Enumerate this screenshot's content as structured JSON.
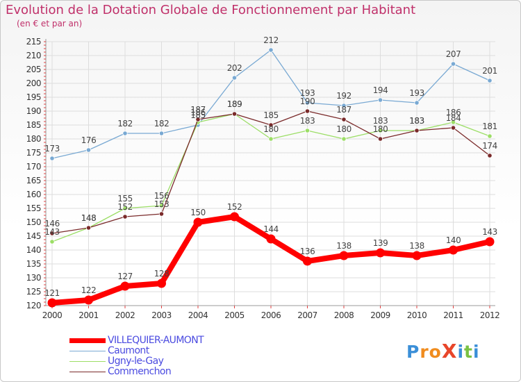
{
  "header": {
    "title": "Evolution de la Dotation Globale de Fonctionnement par Habitant",
    "subtitle": "(en € et par an)"
  },
  "logo": {
    "text": "ProXiti",
    "letters": [
      "P",
      "r",
      "o",
      "X",
      "i",
      "t",
      "i"
    ],
    "colors": [
      "#3b8fd8",
      "#f08c1e",
      "#f08c1e",
      "#e8462a",
      "#3b8fd8",
      "#7ac143",
      "#3b8fd8"
    ]
  },
  "colors": {
    "title": "#c0306a",
    "axis_text": "#333333",
    "grid": "#dddddd",
    "legend_text": "#4a4ae0"
  },
  "chart_data": {
    "type": "line",
    "x": [
      "2000",
      "2001",
      "2002",
      "2003",
      "2004",
      "2005",
      "2006",
      "2007",
      "2008",
      "2009",
      "2010",
      "2011",
      "2012"
    ],
    "ylim": [
      120,
      215
    ],
    "yticks": [
      120,
      125,
      130,
      135,
      140,
      145,
      150,
      155,
      160,
      165,
      170,
      175,
      180,
      185,
      190,
      195,
      200,
      205,
      210,
      215
    ],
    "grid": true,
    "legend_position": "bottom-left",
    "series": [
      {
        "name": "VILLEQUIER-AUMONT",
        "color": "#ff0000",
        "values": [
          121,
          122,
          127,
          128,
          150,
          152,
          144,
          136,
          138,
          139,
          138,
          140,
          143
        ]
      },
      {
        "name": "Caumont",
        "color": "#79a9d3",
        "values": [
          173,
          176,
          182,
          182,
          185,
          202,
          212,
          193,
          192,
          194,
          193,
          207,
          201
        ]
      },
      {
        "name": "Ugny-le-Gay",
        "color": "#9cde66",
        "values": [
          143,
          148,
          155,
          156,
          186,
          189,
          180,
          183,
          180,
          183,
          183,
          186,
          181
        ]
      },
      {
        "name": "Commenchon",
        "color": "#7a2a2a",
        "values": [
          146,
          148,
          152,
          153,
          187,
          189,
          185,
          190,
          187,
          180,
          183,
          184,
          174
        ]
      }
    ]
  }
}
